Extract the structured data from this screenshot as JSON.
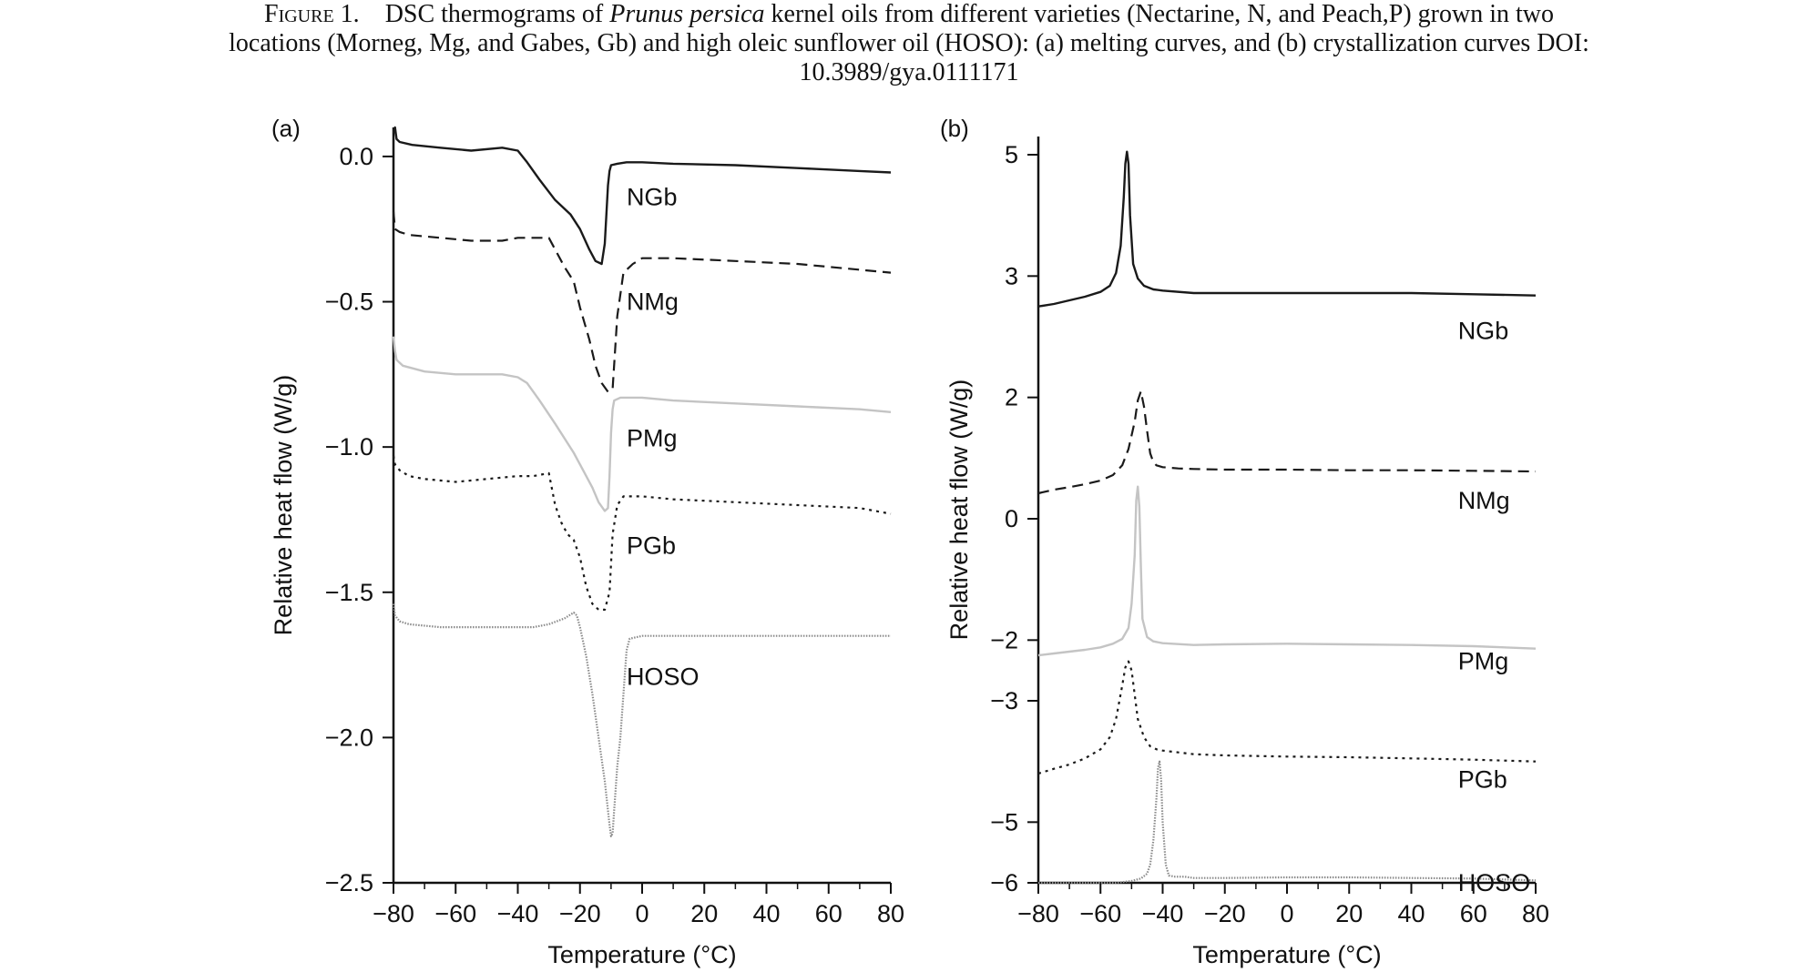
{
  "caption": {
    "fig_label": "Figure 1.",
    "line1_a": "DSC thermograms of ",
    "line1_italic": "Prunus persica",
    "line1_b": " kernel oils from different varieties (Nectarine, N, and Peach,P) grown in two",
    "line2": "locations (Morneg, Mg, and Gabes, Gb) and high oleic sunflower oil (HOSO): (a) melting curves, and (b) crystallization curves DOI:",
    "line3": "10.3989/gya.0111171"
  },
  "colors": {
    "NGb": "#1a1a1a",
    "NMg": "#1a1a1a",
    "PMg": "#c4c4c4",
    "PGb": "#1a1a1a",
    "HOSO": "#8a8a8a"
  },
  "chart_data": [
    {
      "panel_label": "(a)",
      "type": "line",
      "xlabel": "Temperature (°C)",
      "ylabel": "Relative heat flow (W/g)",
      "xlim": [
        -80,
        80
      ],
      "ylim": [
        -2.5,
        0.1
      ],
      "xticks": [
        -80,
        -60,
        -40,
        -20,
        0,
        20,
        40,
        60,
        80
      ],
      "xtick_labels": [
        "−80",
        "−60",
        "−40",
        "−20",
        "0",
        "20",
        "40",
        "60",
        "80"
      ],
      "yticks": [
        0.0,
        -0.5,
        -1.0,
        -1.5,
        -2.0,
        -2.5
      ],
      "ytick_labels": [
        "0.0",
        "−0.5",
        "−1.0",
        "−1.5",
        "−2.0",
        "−2.5"
      ],
      "grid": false,
      "series": [
        {
          "name": "NGb",
          "style": "solid",
          "label_at": [
            -5,
            -0.14
          ],
          "x": [
            -80,
            -79.5,
            -79,
            -78,
            -74,
            -65,
            -55,
            -45,
            -40,
            -37,
            -33,
            -28,
            -23,
            -20,
            -17,
            -15,
            -13,
            -12,
            -11,
            -10.5,
            -10,
            -8,
            -5,
            0,
            10,
            30,
            50,
            70,
            80
          ],
          "y": [
            0.08,
            0.1,
            0.06,
            0.05,
            0.04,
            0.03,
            0.02,
            0.03,
            0.02,
            -0.02,
            -0.08,
            -0.15,
            -0.2,
            -0.25,
            -0.32,
            -0.36,
            -0.37,
            -0.3,
            -0.1,
            -0.05,
            -0.03,
            -0.025,
            -0.02,
            -0.02,
            -0.025,
            -0.03,
            -0.04,
            -0.05,
            -0.055
          ]
        },
        {
          "name": "NMg",
          "style": "dashed",
          "label_at": [
            -5,
            -0.5
          ],
          "x": [
            -80,
            -79.5,
            -78,
            -75,
            -65,
            -55,
            -45,
            -40,
            -35,
            -30,
            -27,
            -25,
            -22,
            -20,
            -17,
            -15,
            -13,
            -11,
            -9.5,
            -8,
            -6,
            -3,
            0,
            10,
            30,
            50,
            70,
            80
          ],
          "y": [
            -0.19,
            -0.25,
            -0.26,
            -0.27,
            -0.28,
            -0.29,
            -0.29,
            -0.28,
            -0.28,
            -0.28,
            -0.34,
            -0.38,
            -0.43,
            -0.52,
            -0.63,
            -0.72,
            -0.78,
            -0.81,
            -0.8,
            -0.55,
            -0.4,
            -0.37,
            -0.35,
            -0.35,
            -0.36,
            -0.37,
            -0.39,
            -0.4
          ]
        },
        {
          "name": "PMg",
          "style": "solid",
          "label_at": [
            -5,
            -0.97
          ],
          "x": [
            -80,
            -79.5,
            -79,
            -77,
            -70,
            -60,
            -45,
            -40,
            -37,
            -33,
            -28,
            -22,
            -19,
            -16,
            -14,
            -12,
            -11,
            -10.5,
            -10,
            -9.5,
            -9,
            -7,
            -3,
            0,
            10,
            30,
            50,
            70,
            80
          ],
          "y": [
            -0.62,
            -0.67,
            -0.7,
            -0.72,
            -0.74,
            -0.75,
            -0.75,
            -0.76,
            -0.78,
            -0.84,
            -0.92,
            -1.02,
            -1.08,
            -1.14,
            -1.19,
            -1.22,
            -1.21,
            -1.1,
            -0.95,
            -0.87,
            -0.84,
            -0.83,
            -0.83,
            -0.83,
            -0.84,
            -0.85,
            -0.86,
            -0.87,
            -0.88
          ]
        },
        {
          "name": "PGb",
          "style": "dotted",
          "label_at": [
            -5,
            -1.34
          ],
          "x": [
            -80,
            -79.5,
            -78,
            -75,
            -70,
            -60,
            -50,
            -40,
            -35,
            -30,
            -28,
            -26,
            -24,
            -22,
            -20,
            -18,
            -16,
            -14,
            -12,
            -10.5,
            -9.5,
            -8,
            -6,
            -4,
            0,
            10,
            30,
            50,
            70,
            80
          ],
          "y": [
            -1.03,
            -1.06,
            -1.08,
            -1.1,
            -1.11,
            -1.12,
            -1.11,
            -1.1,
            -1.1,
            -1.09,
            -1.2,
            -1.26,
            -1.3,
            -1.32,
            -1.38,
            -1.48,
            -1.54,
            -1.56,
            -1.56,
            -1.5,
            -1.3,
            -1.2,
            -1.17,
            -1.17,
            -1.17,
            -1.18,
            -1.19,
            -1.2,
            -1.21,
            -1.23
          ]
        },
        {
          "name": "HOSO",
          "style": "dashdot",
          "label_at": [
            -5,
            -1.79
          ],
          "x": [
            -80,
            -79.5,
            -78,
            -75,
            -65,
            -55,
            -45,
            -35,
            -30,
            -25,
            -22,
            -21,
            -20,
            -18,
            -16,
            -14,
            -12,
            -10.5,
            -10,
            -9.5,
            -9,
            -8,
            -7,
            -6,
            -5,
            -4,
            0,
            10,
            30,
            50,
            70,
            80
          ],
          "y": [
            -1.54,
            -1.58,
            -1.6,
            -1.61,
            -1.62,
            -1.62,
            -1.62,
            -1.62,
            -1.61,
            -1.59,
            -1.57,
            -1.58,
            -1.62,
            -1.72,
            -1.85,
            -2.0,
            -2.15,
            -2.3,
            -2.34,
            -2.33,
            -2.25,
            -2.1,
            -2.0,
            -1.85,
            -1.7,
            -1.66,
            -1.65,
            -1.65,
            -1.65,
            -1.65,
            -1.65,
            -1.65
          ]
        }
      ]
    },
    {
      "panel_label": "(b)",
      "type": "line",
      "xlabel": "Temperature (°C)",
      "ylabel": "Relative heat flow (W/g)",
      "xlim": [
        -80,
        80
      ],
      "ylim": [
        -6,
        5.3
      ],
      "xticks": [
        -80,
        -60,
        -40,
        -20,
        0,
        20,
        40,
        60,
        80
      ],
      "xtick_labels": [
        "−80",
        "−60",
        "−40",
        "−20",
        "0",
        "20",
        "40",
        "60",
        "80"
      ],
      "yticks": [
        5,
        3,
        2,
        0,
        -2,
        -3,
        -5,
        -6
      ],
      "ytick_labels": [
        "5",
        "3",
        "2",
        "0",
        "−2",
        "−3",
        "−5",
        "−6"
      ],
      "tick_positions": [
        5,
        3,
        1,
        -1,
        -3,
        -4,
        -6,
        -7
      ],
      "ylim_positions": [
        -7,
        5.3
      ],
      "grid": false,
      "series": [
        {
          "name": "NGb",
          "style": "solid",
          "label_at": [
            55,
            2.55
          ],
          "x": [
            -80,
            -75,
            -70,
            -65,
            -60,
            -57,
            -55,
            -53.5,
            -52.5,
            -52,
            -51.5,
            -51,
            -50.5,
            -49.5,
            -48,
            -46,
            -43,
            -40,
            -30,
            -20,
            0,
            20,
            40,
            60,
            80
          ],
          "y": [
            2.75,
            2.77,
            2.8,
            2.83,
            2.87,
            2.92,
            3.05,
            3.5,
            4.3,
            4.85,
            5.05,
            4.85,
            4.0,
            3.2,
            2.98,
            2.92,
            2.89,
            2.88,
            2.86,
            2.86,
            2.86,
            2.86,
            2.86,
            2.85,
            2.84
          ]
        },
        {
          "name": "NMg",
          "style": "dashed",
          "label_at": [
            55,
            0.3
          ],
          "x": [
            -80,
            -75,
            -70,
            -65,
            -60,
            -56,
            -53,
            -51,
            -49,
            -48,
            -47,
            -46,
            -45,
            -44,
            -43,
            -42,
            -40,
            -35,
            -30,
            -20,
            0,
            20,
            40,
            60,
            80
          ],
          "y": [
            0.42,
            0.48,
            0.52,
            0.57,
            0.63,
            0.72,
            0.88,
            1.15,
            1.6,
            1.95,
            2.05,
            1.85,
            1.45,
            1.08,
            0.93,
            0.88,
            0.85,
            0.83,
            0.82,
            0.81,
            0.81,
            0.8,
            0.8,
            0.79,
            0.78
          ]
        },
        {
          "name": "PMg",
          "style": "solid",
          "label_at": [
            55,
            -2.35
          ],
          "x": [
            -80,
            -75,
            -70,
            -65,
            -60,
            -56,
            -53,
            -51,
            -50,
            -49,
            -48.5,
            -48,
            -47.5,
            -47,
            -46.5,
            -45,
            -43,
            -40,
            -30,
            -20,
            0,
            20,
            40,
            60,
            80
          ],
          "y": [
            -2.25,
            -2.22,
            -2.19,
            -2.16,
            -2.12,
            -2.06,
            -1.98,
            -1.8,
            -1.4,
            -0.6,
            0.3,
            0.53,
            0.2,
            -0.8,
            -1.65,
            -1.95,
            -2.02,
            -2.05,
            -2.08,
            -2.07,
            -2.06,
            -2.07,
            -2.08,
            -2.1,
            -2.14
          ]
        },
        {
          "name": "PGb",
          "style": "dotted",
          "label_at": [
            55,
            -4.3
          ],
          "x": [
            -80,
            -75,
            -70,
            -65,
            -60,
            -57,
            -55,
            -53,
            -52,
            -51,
            -50,
            -49,
            -48,
            -46,
            -44,
            -42,
            -40,
            -35,
            -30,
            -20,
            0,
            20,
            40,
            60,
            80
          ],
          "y": [
            -4.2,
            -4.12,
            -4.05,
            -3.95,
            -3.8,
            -3.6,
            -3.3,
            -2.75,
            -2.45,
            -2.35,
            -2.5,
            -2.9,
            -3.3,
            -3.6,
            -3.75,
            -3.8,
            -3.82,
            -3.85,
            -3.88,
            -3.9,
            -3.92,
            -3.93,
            -3.95,
            -3.97,
            -4.0
          ]
        },
        {
          "name": "HOSO",
          "style": "dashdot",
          "label_at": [
            55,
            -6.35
          ],
          "x": [
            -80,
            -75,
            -70,
            -65,
            -60,
            -55,
            -50,
            -47,
            -45,
            -44,
            -43,
            -42,
            -41.5,
            -41,
            -40.5,
            -40,
            -39,
            -38,
            -36,
            -33,
            -30,
            -20,
            0,
            20,
            40,
            60,
            80
          ],
          "y": [
            -6.25,
            -6.2,
            -6.15,
            -6.1,
            -6.05,
            -6.0,
            -5.97,
            -5.93,
            -5.85,
            -5.7,
            -5.3,
            -4.6,
            -4.1,
            -4.0,
            -4.3,
            -5.0,
            -5.7,
            -5.88,
            -5.9,
            -5.9,
            -5.92,
            -5.92,
            -5.91,
            -5.91,
            -5.92,
            -5.93,
            -5.96
          ]
        }
      ]
    }
  ]
}
